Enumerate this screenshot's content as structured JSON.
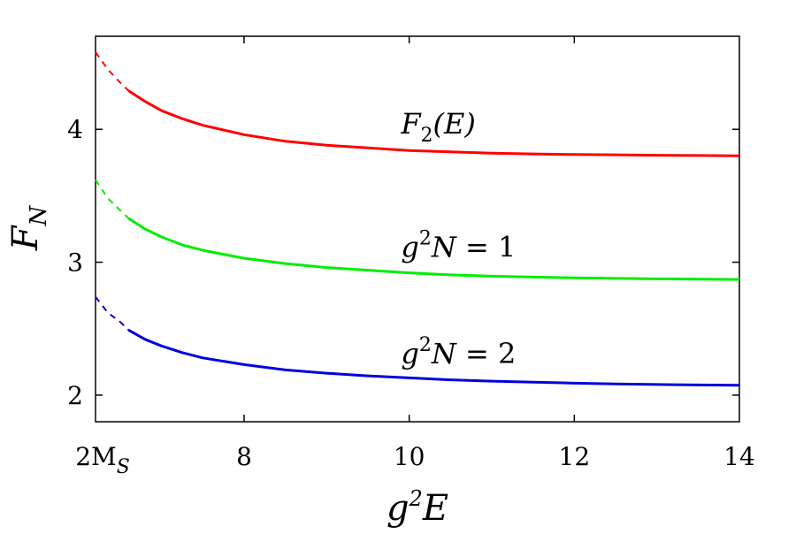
{
  "chart_data": {
    "type": "line",
    "xlabel": {
      "base": "g",
      "sup": "2",
      "tail": "E"
    },
    "ylabel": {
      "base": "F",
      "sub": "N"
    },
    "xlim": [
      6.2,
      14
    ],
    "ylim": [
      1.8,
      4.7
    ],
    "x_ticks": [
      {
        "value": 6.2,
        "label_main": "2M",
        "label_sub": "S"
      },
      {
        "value": 8,
        "label_main": "8"
      },
      {
        "value": 10,
        "label_main": "10"
      },
      {
        "value": 12,
        "label_main": "12"
      },
      {
        "value": 14,
        "label_main": "14"
      }
    ],
    "y_ticks": [
      {
        "value": 2,
        "label": "2"
      },
      {
        "value": 3,
        "label": "3"
      },
      {
        "value": 4,
        "label": "4"
      }
    ],
    "grid": false,
    "legend": "none",
    "series": [
      {
        "key": "F2",
        "color": "#ff0000",
        "dashed_until_x": 6.6,
        "x": [
          6.2,
          6.35,
          6.5,
          6.6,
          6.8,
          7.0,
          7.25,
          7.5,
          8.0,
          8.5,
          9.0,
          9.5,
          10.0,
          10.5,
          11.0,
          11.5,
          12.0,
          12.5,
          13.0,
          13.5,
          14.0
        ],
        "y": [
          4.58,
          4.45,
          4.35,
          4.29,
          4.21,
          4.14,
          4.08,
          4.03,
          3.96,
          3.91,
          3.88,
          3.86,
          3.84,
          3.83,
          3.82,
          3.815,
          3.81,
          3.808,
          3.805,
          3.803,
          3.8
        ]
      },
      {
        "key": "g2N1",
        "color": "#00ee00",
        "dashed_until_x": 6.6,
        "x": [
          6.2,
          6.35,
          6.5,
          6.6,
          6.8,
          7.0,
          7.25,
          7.5,
          8.0,
          8.5,
          9.0,
          9.5,
          10.0,
          10.5,
          11.0,
          11.5,
          12.0,
          12.5,
          13.0,
          13.5,
          14.0
        ],
        "y": [
          3.62,
          3.48,
          3.39,
          3.33,
          3.25,
          3.19,
          3.13,
          3.09,
          3.03,
          2.99,
          2.96,
          2.94,
          2.92,
          2.905,
          2.895,
          2.888,
          2.882,
          2.878,
          2.875,
          2.873,
          2.87
        ]
      },
      {
        "key": "g2N2",
        "color": "#0000dd",
        "dashed_until_x": 6.6,
        "x": [
          6.2,
          6.35,
          6.5,
          6.6,
          6.8,
          7.0,
          7.25,
          7.5,
          8.0,
          8.5,
          9.0,
          9.5,
          10.0,
          10.5,
          11.0,
          11.5,
          12.0,
          12.5,
          13.0,
          13.5,
          14.0
        ],
        "y": [
          2.74,
          2.62,
          2.55,
          2.49,
          2.42,
          2.37,
          2.32,
          2.28,
          2.23,
          2.19,
          2.165,
          2.145,
          2.13,
          2.115,
          2.105,
          2.098,
          2.09,
          2.085,
          2.08,
          2.077,
          2.075
        ]
      }
    ],
    "annotations": [
      {
        "key": "F2",
        "x": 9.9,
        "y": 3.97,
        "text": {
          "base": "F",
          "sub": "2",
          "tail": "(E)"
        }
      },
      {
        "key": "g2N1",
        "x": 9.9,
        "y": 3.04,
        "text": {
          "base": "g",
          "sup": "2",
          "mid": "N",
          "eq": " = 1"
        }
      },
      {
        "key": "g2N2",
        "x": 9.9,
        "y": 2.24,
        "text": {
          "base": "g",
          "sup": "2",
          "mid": "N",
          "eq": " = 2"
        }
      }
    ]
  }
}
